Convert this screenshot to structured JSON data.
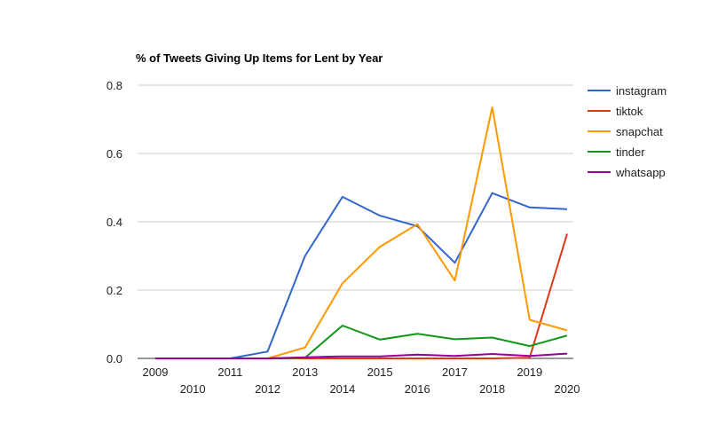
{
  "chart_data": {
    "type": "line",
    "title": "% of Tweets Giving Up Items for Lent by Year",
    "xlabel": "",
    "ylabel": "",
    "categories": [
      "2009",
      "2010",
      "2011",
      "2012",
      "2013",
      "2014",
      "2015",
      "2016",
      "2017",
      "2018",
      "2019",
      "2020"
    ],
    "ylim": [
      0,
      0.8
    ],
    "yticks": [
      "0.0",
      "0.2",
      "0.4",
      "0.6",
      "0.8"
    ],
    "grid": true,
    "legend_position": "right",
    "series": [
      {
        "name": "instagram",
        "color": "#3366cc",
        "values": [
          0,
          0,
          0,
          0.02,
          0.3,
          0.473,
          0.418,
          0.387,
          0.28,
          0.484,
          0.442,
          0.437
        ]
      },
      {
        "name": "tiktok",
        "color": "#dc3912",
        "values": [
          0,
          0,
          0,
          0,
          0,
          0,
          0,
          0,
          0,
          0,
          0.002,
          0.365
        ]
      },
      {
        "name": "snapchat",
        "color": "#ff9900",
        "values": [
          0,
          0,
          0,
          0,
          0.032,
          0.22,
          0.327,
          0.393,
          0.228,
          0.735,
          0.113,
          0.082
        ]
      },
      {
        "name": "tinder",
        "color": "#109618",
        "values": [
          0,
          0,
          0,
          0,
          0.002,
          0.096,
          0.055,
          0.072,
          0.056,
          0.061,
          0.036,
          0.067
        ]
      },
      {
        "name": "whatsapp",
        "color": "#990099",
        "values": [
          0,
          0,
          0,
          0,
          0.003,
          0.006,
          0.006,
          0.011,
          0.007,
          0.013,
          0.007,
          0.014
        ]
      }
    ]
  }
}
